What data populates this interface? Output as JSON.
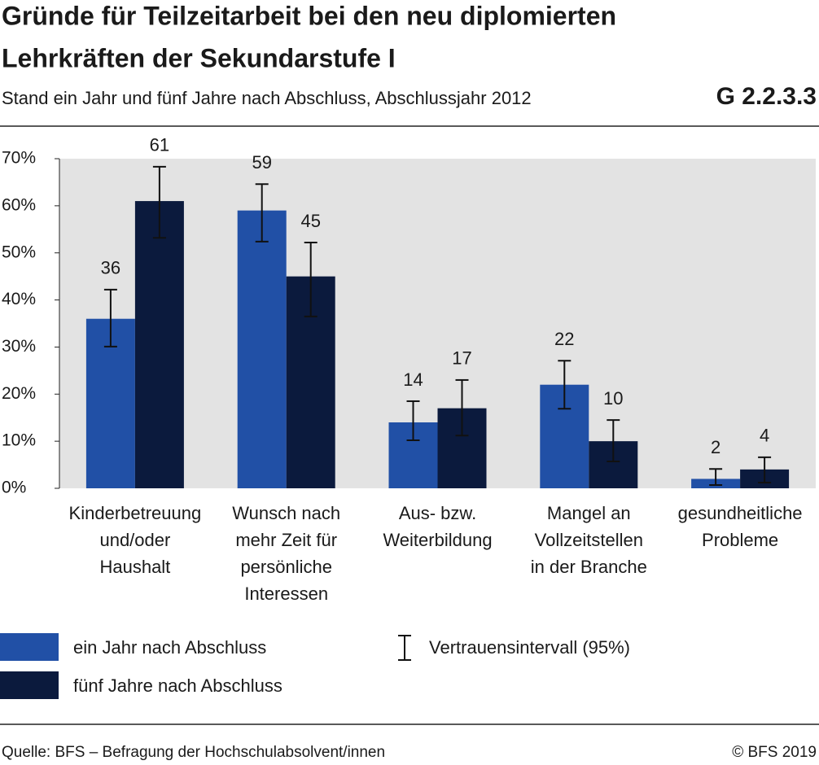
{
  "chart_data": {
    "type": "bar",
    "title": [
      "Gründe für Teilzeitarbeit bei den neu diplomierten",
      "Lehrkräften der Sekundarstufe I"
    ],
    "subtitle": "Stand ein Jahr und fünf Jahre nach Abschluss, Abschlussjahr 2012",
    "chart_id": "G 2.2.3.3",
    "categories": [
      [
        "Kinderbetreuung",
        "und/oder",
        "Haushalt"
      ],
      [
        "Wunsch nach",
        "mehr Zeit für",
        "persönliche",
        "Interessen"
      ],
      [
        "Aus- bzw.",
        "Weiterbildung"
      ],
      [
        "Mangel an",
        "Vollzeitstellen",
        "in der Branche"
      ],
      [
        "gesundheitliche",
        "Probleme"
      ]
    ],
    "series": [
      {
        "name": "ein Jahr nach Abschluss",
        "color": "#2150a6",
        "values": [
          36,
          59,
          14,
          22,
          2
        ],
        "ci_low": [
          30.1,
          52.4,
          10.2,
          16.9,
          0.7
        ],
        "ci_high": [
          42.2,
          64.6,
          18.5,
          27.1,
          4.1
        ]
      },
      {
        "name": "fünf Jahre nach Abschluss",
        "color": "#0b1a3d",
        "values": [
          61,
          45,
          17,
          10,
          4
        ],
        "ci_low": [
          53.2,
          36.5,
          11.2,
          5.7,
          1.2
        ],
        "ci_high": [
          68.3,
          52.2,
          23.0,
          14.5,
          6.6
        ]
      }
    ],
    "ci_label": "Vertrauensintervall (95%)",
    "ylim": [
      0,
      70
    ],
    "yticks": [
      {
        "value": 0,
        "label": "0%"
      },
      {
        "value": 10,
        "label": "10%"
      },
      {
        "value": 20,
        "label": "20%"
      },
      {
        "value": 30,
        "label": "30%"
      },
      {
        "value": 40,
        "label": "40%"
      },
      {
        "value": 50,
        "label": "50%"
      },
      {
        "value": 60,
        "label": "60%"
      },
      {
        "value": 70,
        "label": "70%"
      }
    ],
    "grid": false,
    "source": "Quelle: BFS – Befragung der Hochschulabsolvent/innen",
    "copyright": "© BFS 2019"
  }
}
